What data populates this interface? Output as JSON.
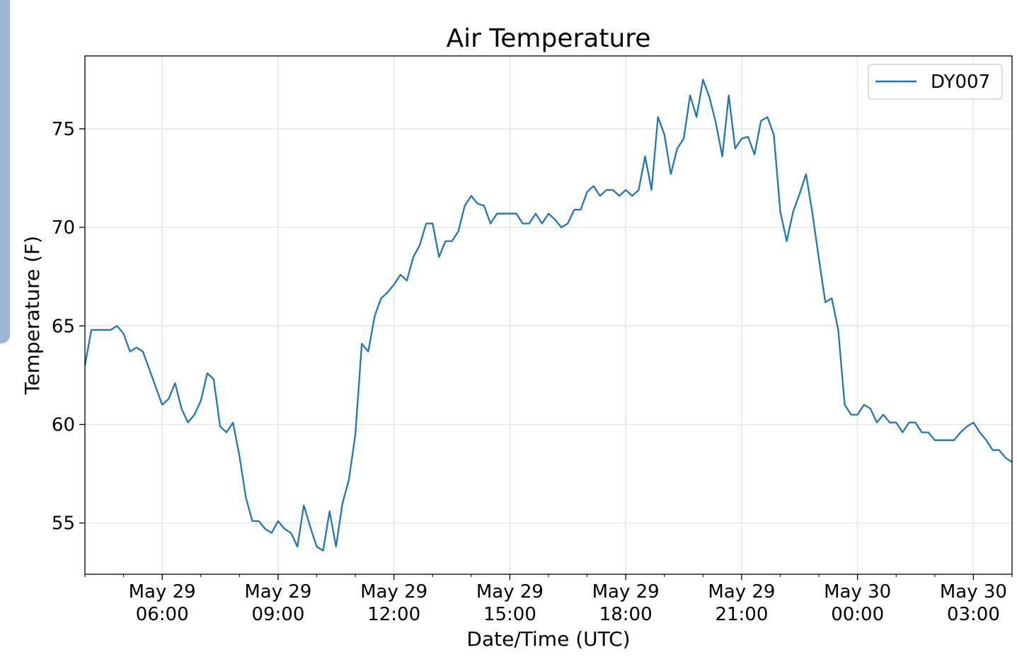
{
  "chart_data": {
    "type": "line",
    "title": "Air Temperature",
    "xlabel": "Date/Time (UTC)",
    "ylabel": "Temperature (F)",
    "x_units": "hours since May 29 00:00 UTC",
    "x_start": 4,
    "x_step_minutes": 10,
    "xlim": [
      4,
      28
    ],
    "ylim": [
      52.4,
      78.7
    ],
    "grid": true,
    "legend_position": "top-right",
    "x_ticks": [
      {
        "value": 6,
        "line1": "May 29",
        "line2": "06:00"
      },
      {
        "value": 9,
        "line1": "May 29",
        "line2": "09:00"
      },
      {
        "value": 12,
        "line1": "May 29",
        "line2": "12:00"
      },
      {
        "value": 15,
        "line1": "May 29",
        "line2": "15:00"
      },
      {
        "value": 18,
        "line1": "May 29",
        "line2": "18:00"
      },
      {
        "value": 21,
        "line1": "May 29",
        "line2": "21:00"
      },
      {
        "value": 24,
        "line1": "May 30",
        "line2": "00:00"
      },
      {
        "value": 27,
        "line1": "May 30",
        "line2": "03:00"
      }
    ],
    "y_ticks": [
      {
        "value": 55,
        "label": "55"
      },
      {
        "value": 60,
        "label": "60"
      },
      {
        "value": 65,
        "label": "65"
      },
      {
        "value": 70,
        "label": "70"
      },
      {
        "value": 75,
        "label": "75"
      }
    ],
    "series": [
      {
        "name": "DY007",
        "color": "#1f77b4",
        "values": [
          63.0,
          64.8,
          64.8,
          64.8,
          64.8,
          65.0,
          64.6,
          63.7,
          63.9,
          63.7,
          62.8,
          61.9,
          61.0,
          61.3,
          62.1,
          60.8,
          60.1,
          60.5,
          61.2,
          62.6,
          62.3,
          59.9,
          59.6,
          60.1,
          58.4,
          56.3,
          55.1,
          55.1,
          54.7,
          54.5,
          55.1,
          54.7,
          54.5,
          53.8,
          55.9,
          54.8,
          53.8,
          53.6,
          55.6,
          53.8,
          56.0,
          57.2,
          59.5,
          64.1,
          63.7,
          65.5,
          66.4,
          66.7,
          67.1,
          67.6,
          67.3,
          68.5,
          69.1,
          70.2,
          70.2,
          68.5,
          69.3,
          69.3,
          69.8,
          71.1,
          71.6,
          71.2,
          71.1,
          70.2,
          70.7,
          70.7,
          70.7,
          70.7,
          70.2,
          70.2,
          70.7,
          70.2,
          70.7,
          70.4,
          70.0,
          70.2,
          70.9,
          70.9,
          71.8,
          72.1,
          71.6,
          71.9,
          71.9,
          71.6,
          71.9,
          71.6,
          71.9,
          73.6,
          71.9,
          75.6,
          74.7,
          72.7,
          74.0,
          74.5,
          76.7,
          75.6,
          77.5,
          76.6,
          75.3,
          73.6,
          76.7,
          74.0,
          74.5,
          74.6,
          73.7,
          75.4,
          75.6,
          74.7,
          70.8,
          69.3,
          70.8,
          71.7,
          72.7,
          70.7,
          68.4,
          66.2,
          66.4,
          64.8,
          61.0,
          60.5,
          60.5,
          61.0,
          60.8,
          60.1,
          60.5,
          60.1,
          60.1,
          59.6,
          60.1,
          60.1,
          59.6,
          59.6,
          59.2,
          59.2,
          59.2,
          59.2,
          59.6,
          59.9,
          60.1,
          59.6,
          59.2,
          58.7,
          58.7,
          58.3,
          58.1
        ]
      }
    ]
  }
}
